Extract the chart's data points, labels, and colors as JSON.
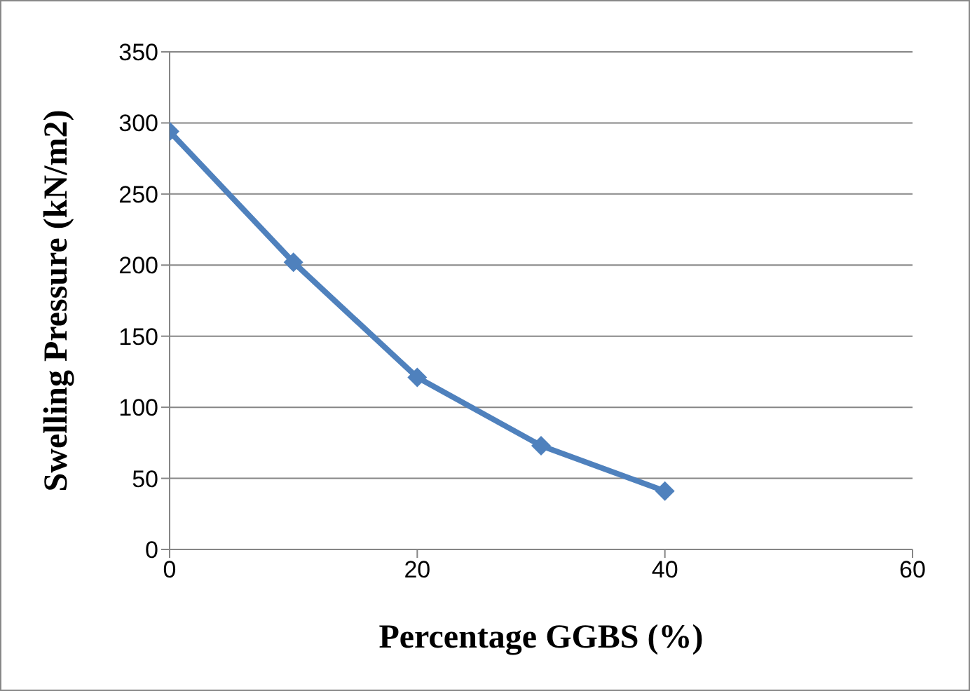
{
  "chart_data": {
    "type": "line",
    "xlabel": "Percentage GGBS (%)",
    "ylabel": "Swelling Pressure (kN/m2)",
    "x": [
      0,
      10,
      20,
      30,
      40
    ],
    "series": [
      {
        "color": "#4f81bd",
        "values": [
          294,
          202,
          121,
          73,
          41
        ]
      }
    ],
    "xlim": [
      0,
      60
    ],
    "xticks": [
      0,
      20,
      40,
      60
    ],
    "ylim": [
      0,
      350
    ],
    "yticks": [
      0,
      50,
      100,
      150,
      200,
      250,
      300,
      350
    ],
    "grid": "y",
    "marker": "diamond",
    "line_style": "solid",
    "legend": false
  }
}
